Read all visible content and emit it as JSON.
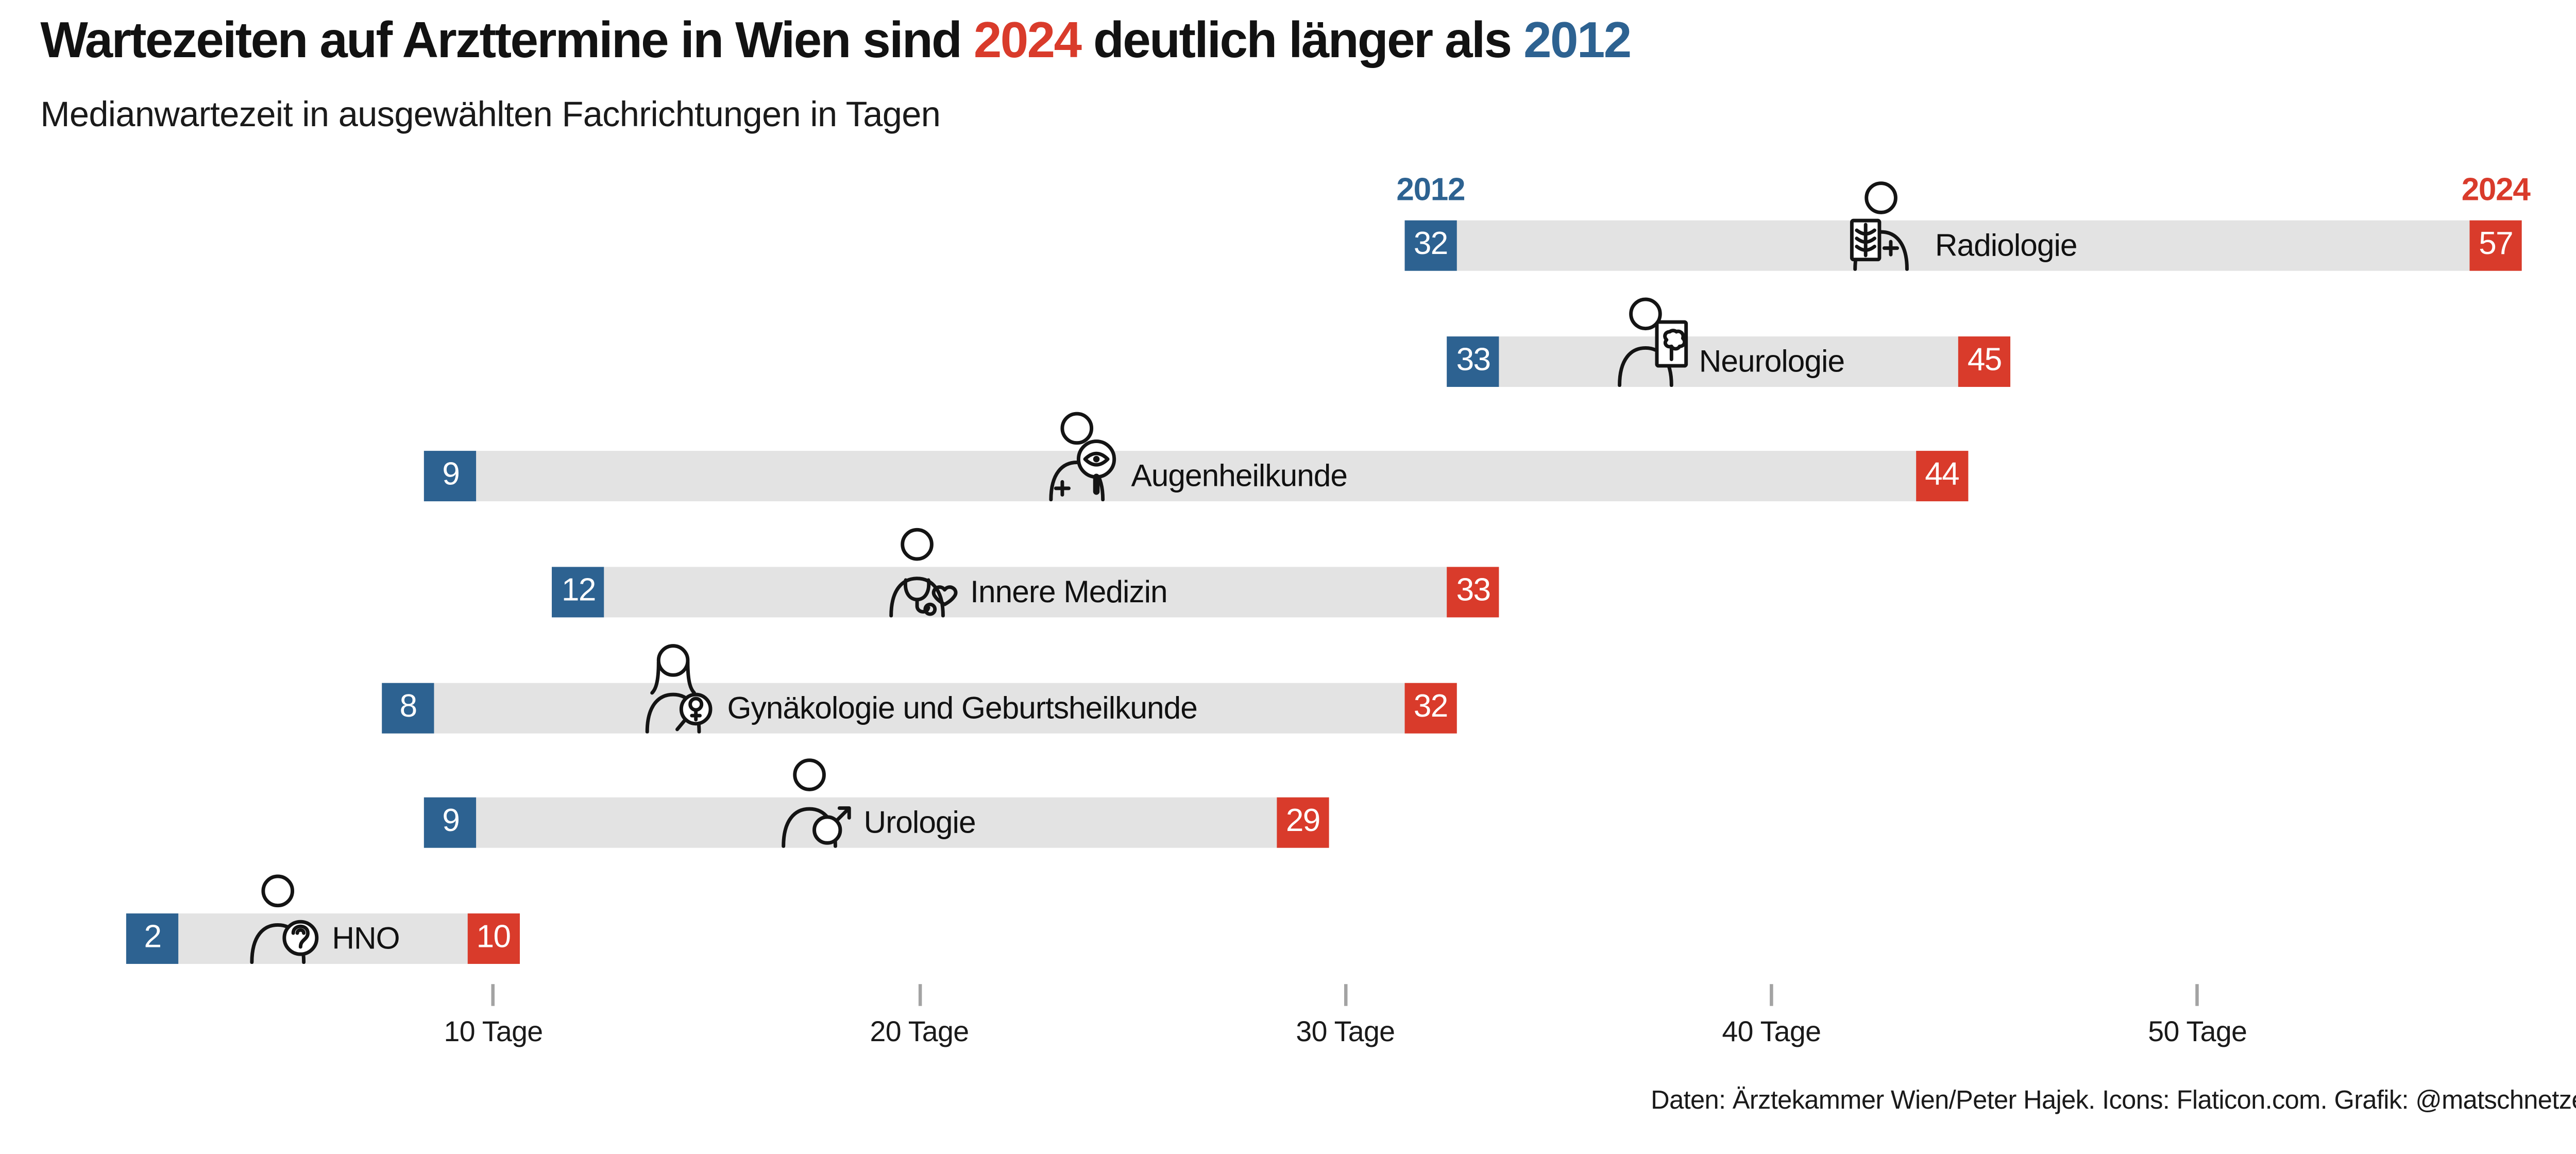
{
  "title": {
    "prefix": "Wartezeiten auf Arzttermine in Wien sind ",
    "year_new": "2024",
    "middle": " deutlich länger als ",
    "year_old": "2012"
  },
  "subtitle": "Medianwartezeit in ausgewählten Fachrichtungen in Tagen",
  "legend": {
    "old_label": "2012",
    "new_label": "2024"
  },
  "footer": "Daten: Ärztekammer Wien/Peter Hajek. Icons: Flaticon.com. Grafik: @matschnetzer",
  "colors": {
    "blue": "#2d6291",
    "red": "#d93b2b",
    "bar_gray": "#e3e3e3",
    "tick_gray": "#a3a3a3"
  },
  "chart_data": {
    "type": "bar",
    "variant": "dumbbell-range",
    "title": "Wartezeiten auf Arzttermine in Wien sind 2024 deutlich länger als 2012",
    "subtitle": "Medianwartezeit in ausgewählten Fachrichtungen in Tagen",
    "unit": "Tage",
    "categories": [
      "Radiologie",
      "Neurologie",
      "Augenheilkunde",
      "Innere Medizin",
      "Gynäkologie und Geburtsheilkunde",
      "Urologie",
      "HNO"
    ],
    "icons": [
      "radiologist-xray-icon",
      "neurologist-brain-icon",
      "ophthalmologist-eye-magnifier-icon",
      "internist-stethoscope-heart-icon",
      "gynecologist-magnifier-icon",
      "urologist-male-symbol-icon",
      "ent-ear-icon"
    ],
    "series": [
      {
        "name": "2012",
        "color": "#2d6291",
        "values": [
          32,
          33,
          9,
          12,
          8,
          9,
          2
        ]
      },
      {
        "name": "2024",
        "color": "#d93b2b",
        "values": [
          57,
          45,
          44,
          33,
          32,
          29,
          10
        ]
      }
    ],
    "x_axis": {
      "ticks": [
        10,
        20,
        30,
        40,
        50
      ],
      "tick_suffix": " Tage",
      "range": [
        0,
        59
      ],
      "grid": false
    },
    "legend_position": "above-first-row"
  }
}
